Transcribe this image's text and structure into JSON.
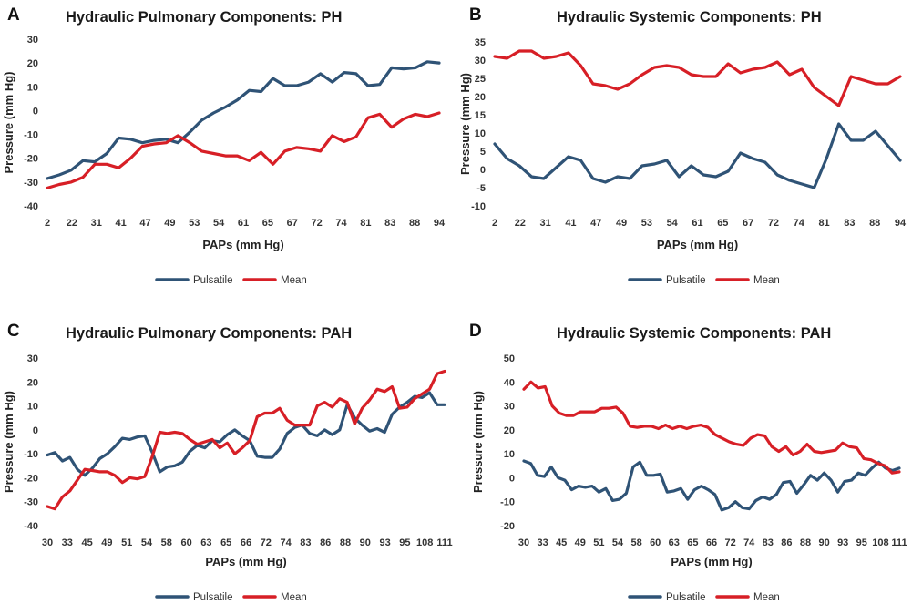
{
  "colors": {
    "pulsatile": "#2f5376",
    "mean": "#d71f26"
  },
  "chart_data": [
    {
      "type": "line",
      "panel": "A",
      "title": "Hydraulic Pulmonary Components: PH",
      "xlabel": "PAPs (mm Hg)",
      "ylabel": "Pressure (mm Hg)",
      "ylim": [
        -40,
        30
      ],
      "yticks": [
        30,
        20,
        10,
        0,
        -10,
        -20,
        -30,
        -40
      ],
      "xtick_labels": [
        "2",
        "22",
        "31",
        "41",
        "47",
        "49",
        "53",
        "54",
        "61",
        "65",
        "67",
        "72",
        "74",
        "81",
        "83",
        "88",
        "94"
      ],
      "n_points": 37,
      "legend": [
        "Pulsatile",
        "Mean"
      ],
      "series": [
        {
          "name": "Pulsatile",
          "values": [
            -28.5,
            -27,
            -25,
            -21,
            -21.5,
            -18,
            -11.5,
            -12,
            -13.5,
            -12.5,
            -12,
            -13.5,
            -9,
            -4,
            -1,
            1.5,
            4.5,
            8.5,
            8,
            13.5,
            10.5,
            10.5,
            12,
            15.5,
            12,
            16,
            15.5,
            10.5,
            11,
            18,
            17.5,
            18,
            20.5,
            20
          ]
        },
        {
          "name": "Mean",
          "values": [
            -32.5,
            -31,
            -30,
            -28,
            -22.5,
            -22.5,
            -24,
            -20,
            -15,
            -14,
            -13.5,
            -10.5,
            -13.5,
            -17,
            -18,
            -19,
            -19,
            -21,
            -17.5,
            -22.5,
            -17,
            -15.5,
            -16,
            -17,
            -10.5,
            -13,
            -11,
            -3,
            -1.5,
            -7,
            -3.5,
            -1.5,
            -2.5,
            -1
          ]
        }
      ]
    },
    {
      "type": "line",
      "panel": "B",
      "title": "Hydraulic Systemic Components: PH",
      "xlabel": "PAPs (mm Hg)",
      "ylabel": "Pressure (mm Hg)",
      "ylim": [
        -10,
        35
      ],
      "yticks": [
        35,
        30,
        25,
        20,
        15,
        10,
        5,
        0,
        -5,
        -10
      ],
      "xtick_labels": [
        "2",
        "22",
        "31",
        "41",
        "47",
        "49",
        "53",
        "54",
        "61",
        "65",
        "67",
        "72",
        "74",
        "81",
        "83",
        "88",
        "94"
      ],
      "n_points": 37,
      "legend": [
        "Pulsatile",
        "Mean"
      ],
      "series": [
        {
          "name": "Pulsatile",
          "values": [
            7,
            3,
            1,
            -2,
            -2.5,
            0.5,
            3.5,
            2.5,
            -2.5,
            -3.5,
            -2,
            -2.5,
            1,
            1.5,
            2.5,
            -2,
            1,
            -1.5,
            -2,
            -0.5,
            4.5,
            3,
            2,
            -1.5,
            -3,
            -4,
            -5,
            3,
            12.5,
            8,
            8,
            10.5,
            6.5,
            2.5
          ]
        },
        {
          "name": "Mean",
          "values": [
            31,
            30.5,
            32.5,
            32.5,
            30.5,
            31,
            32,
            28.5,
            23.5,
            23,
            22,
            23.5,
            26,
            28,
            28.5,
            28,
            26,
            25.5,
            25.5,
            29,
            26.5,
            27.5,
            28,
            29.5,
            26,
            27.5,
            22.5,
            20,
            17.5,
            25.5,
            24.5,
            23.5,
            23.5,
            25.5
          ]
        }
      ]
    },
    {
      "type": "line",
      "panel": "C",
      "title": "Hydraulic Pulmonary Components: PAH",
      "xlabel": "PAPs (mm Hg)",
      "ylabel": "Pressure (mm Hg)",
      "ylim": [
        -40,
        30
      ],
      "yticks": [
        30,
        20,
        10,
        0,
        -10,
        -20,
        -30,
        -40
      ],
      "xtick_labels": [
        "30",
        "33",
        "45",
        "49",
        "51",
        "54",
        "58",
        "60",
        "63",
        "65",
        "66",
        "72",
        "74",
        "83",
        "86",
        "88",
        "90",
        "93",
        "95",
        "108",
        "111"
      ],
      "n_points": 49,
      "legend": [
        "Pulsatile",
        "Mean"
      ],
      "series": [
        {
          "name": "Pulsatile",
          "values": [
            -10.5,
            -9.5,
            -13,
            -11.5,
            -16.5,
            -19,
            -16,
            -12,
            -10,
            -7,
            -3.5,
            -4,
            -3,
            -2.5,
            -9.5,
            -17.5,
            -15.5,
            -15,
            -13.5,
            -9,
            -6.5,
            -7.5,
            -4.5,
            -5,
            -2,
            0,
            -2.5,
            -4.5,
            -11,
            -11.5,
            -11.5,
            -8,
            -1.5,
            1,
            2,
            -1.5,
            -2.5,
            0,
            -2,
            0,
            10.5,
            5,
            2,
            -0.5,
            0.5,
            -1,
            6.5,
            9.5,
            11.5,
            14,
            13.5,
            15.5,
            10.5,
            10.5
          ]
        },
        {
          "name": "Mean",
          "values": [
            -32,
            -33,
            -28,
            -25.5,
            -21,
            -16.5,
            -17,
            -17.5,
            -17.5,
            -19,
            -22,
            -20,
            -20.5,
            -19.5,
            -11,
            -1,
            -1.5,
            -1,
            -1.5,
            -4,
            -6,
            -5,
            -4,
            -7.5,
            -5.5,
            -10,
            -7.5,
            -4.5,
            5.5,
            7,
            7,
            9,
            4,
            2,
            2,
            2,
            10,
            11.5,
            9.5,
            13,
            11.5,
            2.5,
            9,
            12.5,
            17,
            16,
            18,
            9,
            9.5,
            13,
            15,
            17,
            23.5,
            24.5
          ]
        }
      ]
    },
    {
      "type": "line",
      "panel": "D",
      "title": "Hydraulic Systemic Components: PAH",
      "xlabel": "PAPs (mm Hg)",
      "ylabel": "Pressure (mm Hg)",
      "ylim": [
        -20,
        50
      ],
      "yticks": [
        50,
        40,
        30,
        20,
        10,
        0,
        -10,
        -20
      ],
      "xtick_labels": [
        "30",
        "33",
        "45",
        "49",
        "51",
        "54",
        "58",
        "60",
        "63",
        "65",
        "66",
        "72",
        "74",
        "83",
        "86",
        "88",
        "90",
        "93",
        "95",
        "108",
        "111"
      ],
      "n_points": 49,
      "legend": [
        "Pulsatile",
        "Mean"
      ],
      "series": [
        {
          "name": "Pulsatile",
          "values": [
            7,
            6,
            1,
            0.5,
            4.5,
            0,
            -1,
            -5,
            -3.5,
            -4,
            -3.5,
            -6,
            -4.5,
            -9.5,
            -9,
            -6.5,
            4.5,
            6.5,
            1,
            1,
            1.5,
            -6,
            -5.5,
            -4.5,
            -9,
            -5,
            -3.5,
            -5,
            -7,
            -13.5,
            -12.5,
            -10,
            -12.5,
            -13,
            -9.5,
            -8,
            -9,
            -7,
            -2,
            -1.5,
            -6.5,
            -3,
            1,
            -1,
            2,
            -1,
            -6,
            -1.5,
            -1,
            2,
            1,
            4,
            6.5,
            4,
            3,
            4
          ]
        },
        {
          "name": "Mean",
          "values": [
            37,
            40,
            37.5,
            38,
            30,
            27,
            26,
            26,
            27.5,
            27.5,
            27.5,
            29,
            29,
            29.5,
            27,
            21.5,
            21,
            21.5,
            21.5,
            20.5,
            22,
            20.5,
            21.5,
            20.5,
            21.5,
            22,
            21,
            18,
            16.5,
            15,
            14,
            13.5,
            16.5,
            18,
            17.5,
            13,
            11,
            13,
            9.5,
            11,
            14,
            11,
            10.5,
            11,
            11.5,
            14.5,
            13,
            12.5,
            8,
            7.5,
            6,
            5,
            2,
            2.5
          ]
        }
      ]
    }
  ]
}
